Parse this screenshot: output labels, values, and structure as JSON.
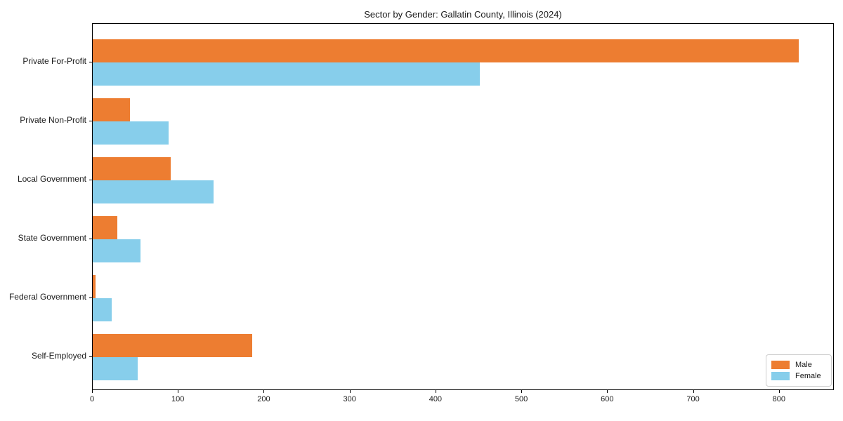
{
  "chart_data": {
    "type": "bar",
    "orientation": "horizontal",
    "title": "Sector by Gender: Gallatin County, Illinois (2024)",
    "xlabel": "",
    "ylabel": "",
    "categories": [
      "Private For-Profit",
      "Private Non-Profit",
      "Local Government",
      "State Government",
      "Federal Government",
      "Self-Employed"
    ],
    "series": [
      {
        "name": "Male",
        "color": "#ED7D31",
        "values": [
          822,
          43,
          91,
          29,
          3,
          186
        ]
      },
      {
        "name": "Female",
        "color": "#87CEEB",
        "values": [
          451,
          88,
          141,
          56,
          22,
          52
        ]
      }
    ],
    "xlim": [
      0,
      864
    ],
    "x_ticks": [
      0,
      100,
      200,
      300,
      400,
      500,
      600,
      700,
      800
    ],
    "grid": false,
    "legend_position": "lower right"
  }
}
